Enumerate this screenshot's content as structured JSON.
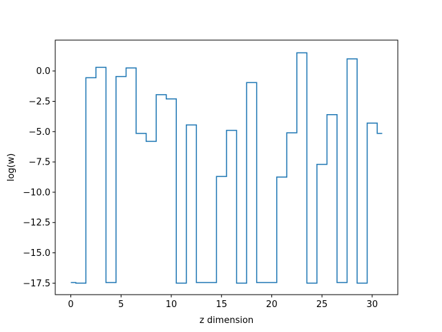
{
  "chart_data": {
    "type": "line",
    "step": "mid",
    "title": "",
    "xlabel": "z dimension",
    "ylabel": "log(w)",
    "xlim": [
      -1.55,
      32.55
    ],
    "ylim": [
      -18.45,
      2.55
    ],
    "xticks": [
      0,
      5,
      10,
      15,
      20,
      25,
      30
    ],
    "xtick_labels": [
      "0",
      "5",
      "10",
      "15",
      "20",
      "25",
      "30"
    ],
    "yticks": [
      0.0,
      -2.5,
      -5.0,
      -7.5,
      -10.0,
      -12.5,
      -15.0,
      -17.5
    ],
    "ytick_labels": [
      "0.0",
      "−2.5",
      "−5.0",
      "−7.5",
      "−10.0",
      "−12.5",
      "−15.0",
      "−17.5"
    ],
    "grid": false,
    "series": [
      {
        "color": "#1f77b4",
        "x": [
          0,
          1,
          2,
          3,
          4,
          5,
          6,
          7,
          8,
          9,
          10,
          11,
          12,
          13,
          14,
          15,
          16,
          17,
          18,
          19,
          20,
          21,
          22,
          23,
          24,
          25,
          26,
          27,
          28,
          29,
          30,
          31
        ],
        "y": [
          -17.45,
          -17.5,
          -0.55,
          0.3,
          -17.45,
          -0.45,
          0.25,
          -5.15,
          -5.8,
          -1.95,
          -2.3,
          -17.5,
          -4.45,
          -17.45,
          -17.45,
          -8.7,
          -4.9,
          -17.5,
          -0.95,
          -17.45,
          -17.45,
          -8.75,
          -5.1,
          1.5,
          -17.5,
          -7.7,
          -3.6,
          -17.45,
          1.0,
          -17.5,
          -4.3,
          -5.15
        ]
      }
    ]
  }
}
